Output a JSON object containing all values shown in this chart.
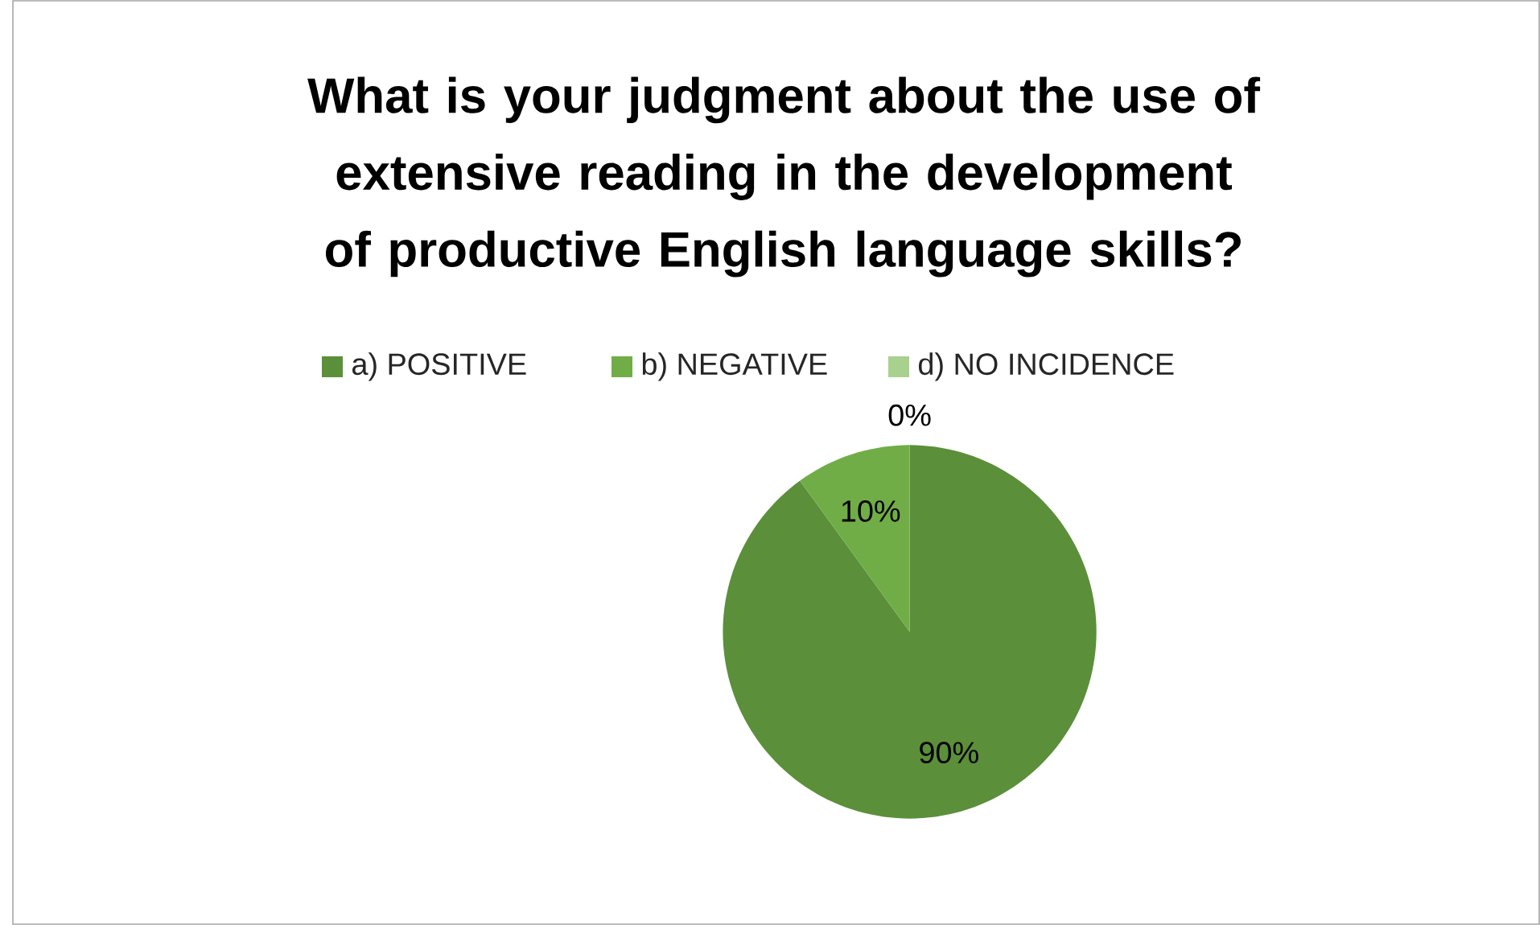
{
  "chart_data": {
    "type": "pie",
    "title": "What is your judgment about the use of extensive reading in the development of productive English language skills?",
    "categories": [
      "a) POSITIVE",
      "b) NEGATIVE",
      "d) NO INCIDENCE"
    ],
    "values": [
      90,
      10,
      0
    ],
    "value_labels": [
      "90%",
      "10%",
      "0%"
    ],
    "colors": [
      "#5b8f3a",
      "#70ad47",
      "#a9d18e"
    ],
    "legend": "top"
  }
}
